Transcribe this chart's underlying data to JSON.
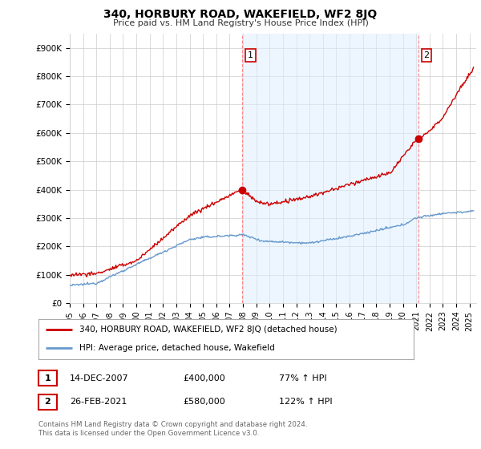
{
  "title": "340, HORBURY ROAD, WAKEFIELD, WF2 8JQ",
  "subtitle": "Price paid vs. HM Land Registry's House Price Index (HPI)",
  "ylabel_ticks": [
    "£0",
    "£100K",
    "£200K",
    "£300K",
    "£400K",
    "£500K",
    "£600K",
    "£700K",
    "£800K",
    "£900K"
  ],
  "ytick_values": [
    0,
    100000,
    200000,
    300000,
    400000,
    500000,
    600000,
    700000,
    800000,
    900000
  ],
  "ylim": [
    0,
    950000
  ],
  "xlim_start": 1995.0,
  "xlim_end": 2025.5,
  "red_color": "#cc0000",
  "blue_color": "#6699cc",
  "blue_fill_color": "#ddeeff",
  "dashed_color": "#ff8888",
  "marker1_x": 2007.96,
  "marker1_y": 400000,
  "marker2_x": 2021.15,
  "marker2_y": 580000,
  "legend_label_red": "340, HORBURY ROAD, WAKEFIELD, WF2 8JQ (detached house)",
  "legend_label_blue": "HPI: Average price, detached house, Wakefield",
  "table_row1": [
    "1",
    "14-DEC-2007",
    "£400,000",
    "77% ↑ HPI"
  ],
  "table_row2": [
    "2",
    "26-FEB-2021",
    "£580,000",
    "122% ↑ HPI"
  ],
  "footnote": "Contains HM Land Registry data © Crown copyright and database right 2024.\nThis data is licensed under the Open Government Licence v3.0.",
  "background_color": "#ffffff",
  "grid_color": "#cccccc"
}
